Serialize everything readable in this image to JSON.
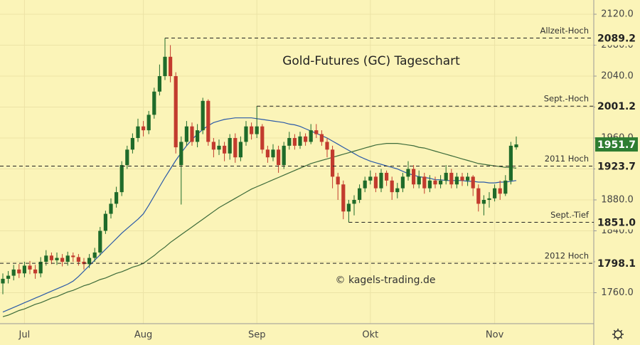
{
  "chart_data": {
    "type": "candlestick",
    "title": "Gold-Futures (GC) Tageschart",
    "watermark": "© kagels-trading.de",
    "categories": [
      null,
      null,
      null,
      null,
      "Jul",
      null,
      null,
      null,
      null,
      null,
      null,
      null,
      null,
      null,
      null,
      null,
      null,
      null,
      null,
      null,
      null,
      null,
      null,
      null,
      null,
      null,
      "Aug",
      null,
      null,
      null,
      null,
      null,
      null,
      null,
      null,
      null,
      null,
      null,
      null,
      null,
      null,
      null,
      null,
      null,
      null,
      null,
      null,
      "Sep",
      null,
      null,
      null,
      null,
      null,
      null,
      null,
      null,
      null,
      null,
      null,
      null,
      null,
      null,
      null,
      null,
      null,
      null,
      null,
      null,
      "Okt",
      null,
      null,
      null,
      null,
      null,
      null,
      null,
      null,
      null,
      null,
      null,
      null,
      null,
      null,
      null,
      null,
      null,
      null,
      null,
      null,
      null,
      null,
      "Nov",
      null,
      null,
      null,
      null
    ],
    "open": [
      1772,
      1778,
      1782,
      1790,
      1785,
      1795,
      1790,
      1785,
      1800,
      1808,
      1802,
      1805,
      1800,
      1808,
      1806,
      1800,
      1797,
      1805,
      1812,
      1840,
      1862,
      1875,
      1890,
      1925,
      1945,
      1960,
      1975,
      1970,
      1990,
      2020,
      2040,
      2065,
      2040,
      1925,
      1955,
      1975,
      1955,
      1970,
      2008,
      1955,
      1945,
      1950,
      1940,
      1960,
      1935,
      1955,
      1975,
      1965,
      1975,
      1945,
      1935,
      1945,
      1925,
      1950,
      1960,
      1950,
      1962,
      1955,
      1970,
      1965,
      1955,
      1945,
      1910,
      1900,
      1865,
      1875,
      1880,
      1895,
      1905,
      1910,
      1895,
      1915,
      1905,
      1890,
      1895,
      1910,
      1920,
      1900,
      1910,
      1895,
      1905,
      1900,
      1905,
      1915,
      1900,
      1910,
      1905,
      1910,
      1895,
      1875,
      1880,
      1882,
      1895,
      1888,
      1905,
      1948
    ],
    "high": [
      1785,
      1788,
      1796,
      1797,
      1800,
      1801,
      1796,
      1806,
      1815,
      1812,
      1812,
      1810,
      1813,
      1812,
      1810,
      1805,
      1810,
      1818,
      1845,
      1866,
      1882,
      1897,
      1930,
      1950,
      1966,
      1985,
      1982,
      1995,
      2025,
      2055,
      2089.2,
      2080,
      2045,
      1962,
      1982,
      1980,
      1978,
      2012,
      2010,
      1960,
      1958,
      1955,
      1965,
      1966,
      1962,
      1982,
      1980,
      2001.2,
      1978,
      1950,
      1952,
      1950,
      1955,
      1968,
      1965,
      1968,
      1966,
      1978,
      1978,
      1970,
      1960,
      1950,
      1915,
      1905,
      1880,
      1886,
      1900,
      1910,
      1918,
      1915,
      1920,
      1918,
      1910,
      1902,
      1915,
      1930,
      1925,
      1918,
      1915,
      1912,
      1910,
      1912,
      1925,
      1920,
      1915,
      1915,
      1915,
      1912,
      1900,
      1886,
      1890,
      1900,
      1905,
      1912,
      1955,
      1962
    ],
    "low": [
      1758,
      1772,
      1776,
      1779,
      1780,
      1784,
      1778,
      1780,
      1795,
      1797,
      1796,
      1794,
      1795,
      1800,
      1795,
      1790,
      1792,
      1800,
      1808,
      1836,
      1856,
      1870,
      1885,
      1920,
      1940,
      1955,
      1962,
      1965,
      1985,
      2015,
      2035,
      2032,
      1940,
      1874,
      1950,
      1950,
      1948,
      1965,
      1950,
      1935,
      1938,
      1930,
      1932,
      1928,
      1930,
      1950,
      1958,
      1960,
      1940,
      1928,
      1930,
      1915,
      1920,
      1945,
      1945,
      1946,
      1950,
      1952,
      1960,
      1950,
      1935,
      1895,
      1880,
      1855,
      1851,
      1860,
      1876,
      1890,
      1900,
      1890,
      1890,
      1898,
      1880,
      1882,
      1890,
      1905,
      1895,
      1895,
      1888,
      1890,
      1895,
      1895,
      1900,
      1895,
      1895,
      1898,
      1898,
      1885,
      1865,
      1860,
      1870,
      1878,
      1880,
      1885,
      1900,
      1945
    ],
    "close": [
      1778,
      1782,
      1790,
      1785,
      1795,
      1790,
      1785,
      1800,
      1808,
      1802,
      1805,
      1800,
      1808,
      1806,
      1800,
      1797,
      1805,
      1812,
      1840,
      1862,
      1875,
      1890,
      1925,
      1945,
      1960,
      1975,
      1970,
      1990,
      2020,
      2040,
      2065,
      2040,
      1948,
      1955,
      1975,
      1955,
      1970,
      2008,
      1955,
      1945,
      1950,
      1940,
      1960,
      1935,
      1955,
      1975,
      1965,
      1975,
      1945,
      1935,
      1945,
      1925,
      1950,
      1960,
      1950,
      1962,
      1955,
      1970,
      1965,
      1955,
      1945,
      1910,
      1900,
      1865,
      1875,
      1880,
      1895,
      1905,
      1910,
      1895,
      1915,
      1905,
      1890,
      1895,
      1910,
      1920,
      1900,
      1910,
      1895,
      1905,
      1900,
      1905,
      1915,
      1900,
      1910,
      1905,
      1910,
      1895,
      1875,
      1880,
      1882,
      1895,
      1888,
      1905,
      1950,
      1951.7
    ],
    "up_color": "#1f6b2a",
    "down_color": "#c23b2e",
    "last_color": "#2e7d32",
    "series": [
      {
        "color": "#2b5aa8",
        "values": [
          1735,
          1738,
          1741,
          1744,
          1747,
          1750,
          1753,
          1756,
          1759,
          1762,
          1765,
          1768,
          1771,
          1775,
          1781,
          1788,
          1795,
          1802,
          1809,
          1816,
          1823,
          1830,
          1837,
          1843,
          1849,
          1855,
          1862,
          1873,
          1885,
          1897,
          1909,
          1920,
          1931,
          1941,
          1950,
          1958,
          1965,
          1971,
          1976,
          1980,
          1982,
          1984,
          1985,
          1986,
          1986,
          1986,
          1986,
          1985,
          1984,
          1983,
          1982,
          1981,
          1980,
          1978,
          1977,
          1975,
          1972,
          1969,
          1966,
          1963,
          1960,
          1956,
          1952,
          1948,
          1944,
          1940,
          1936,
          1933,
          1930,
          1928,
          1926,
          1924,
          1922,
          1920,
          1917,
          1914,
          1912,
          1910,
          1909,
          1908,
          1906,
          1906,
          1905,
          1905,
          1905,
          1905,
          1904,
          1904,
          1903,
          1903,
          1902,
          1902,
          1903,
          1903,
          1904,
          1905
        ]
      },
      {
        "color": "#3d6b3a",
        "values": [
          1729,
          1731,
          1734,
          1737,
          1739,
          1742,
          1745,
          1747,
          1750,
          1753,
          1755,
          1758,
          1761,
          1763,
          1766,
          1769,
          1771,
          1774,
          1777,
          1779,
          1782,
          1785,
          1787,
          1790,
          1793,
          1795,
          1798,
          1803,
          1808,
          1814,
          1819,
          1825,
          1830,
          1835,
          1840,
          1845,
          1850,
          1855,
          1860,
          1865,
          1870,
          1874,
          1878,
          1882,
          1886,
          1890,
          1894,
          1897,
          1900,
          1903,
          1906,
          1909,
          1912,
          1915,
          1918,
          1921,
          1924,
          1927,
          1929,
          1931,
          1933,
          1935,
          1937,
          1939,
          1941,
          1943,
          1945,
          1947,
          1949,
          1951,
          1952,
          1953,
          1953,
          1953,
          1952,
          1951,
          1950,
          1948,
          1947,
          1945,
          1943,
          1941,
          1939,
          1937,
          1935,
          1933,
          1931,
          1929,
          1927,
          1926,
          1925,
          1924,
          1923,
          1922,
          1922,
          1921
        ]
      }
    ],
    "levels": [
      {
        "label": "Allzeit-Hoch",
        "value": 2089.2,
        "value_label": "2089.2"
      },
      {
        "label": "Sept.-Hoch",
        "value": 2001.2,
        "value_label": "2001.2"
      },
      {
        "label": "2011 Hoch",
        "value": 1923.7,
        "value_label": "1923.7"
      },
      {
        "label": "Sept.-Tief",
        "value": 1851.0,
        "value_label": "1851.0"
      },
      {
        "label": "2012 Hoch",
        "value": 1798.1,
        "value_label": "1798.1"
      }
    ],
    "ylim": [
      1720,
      2138.4
    ],
    "yticks": [
      {
        "value": 1760,
        "label": "1760.0"
      },
      {
        "value": 1800,
        "label": "1800.0"
      },
      {
        "value": 1840,
        "label": "1840.0"
      },
      {
        "value": 1880,
        "label": "1880.0"
      },
      {
        "value": 1920,
        "label": "1920.0"
      },
      {
        "value": 1960,
        "label": "1960.0"
      },
      {
        "value": 2000,
        "label": "2000.0"
      },
      {
        "value": 2040,
        "label": "2040.0"
      },
      {
        "value": 2080,
        "label": "2080.0"
      },
      {
        "value": 2120,
        "label": "2120.0"
      }
    ],
    "grid": true
  }
}
